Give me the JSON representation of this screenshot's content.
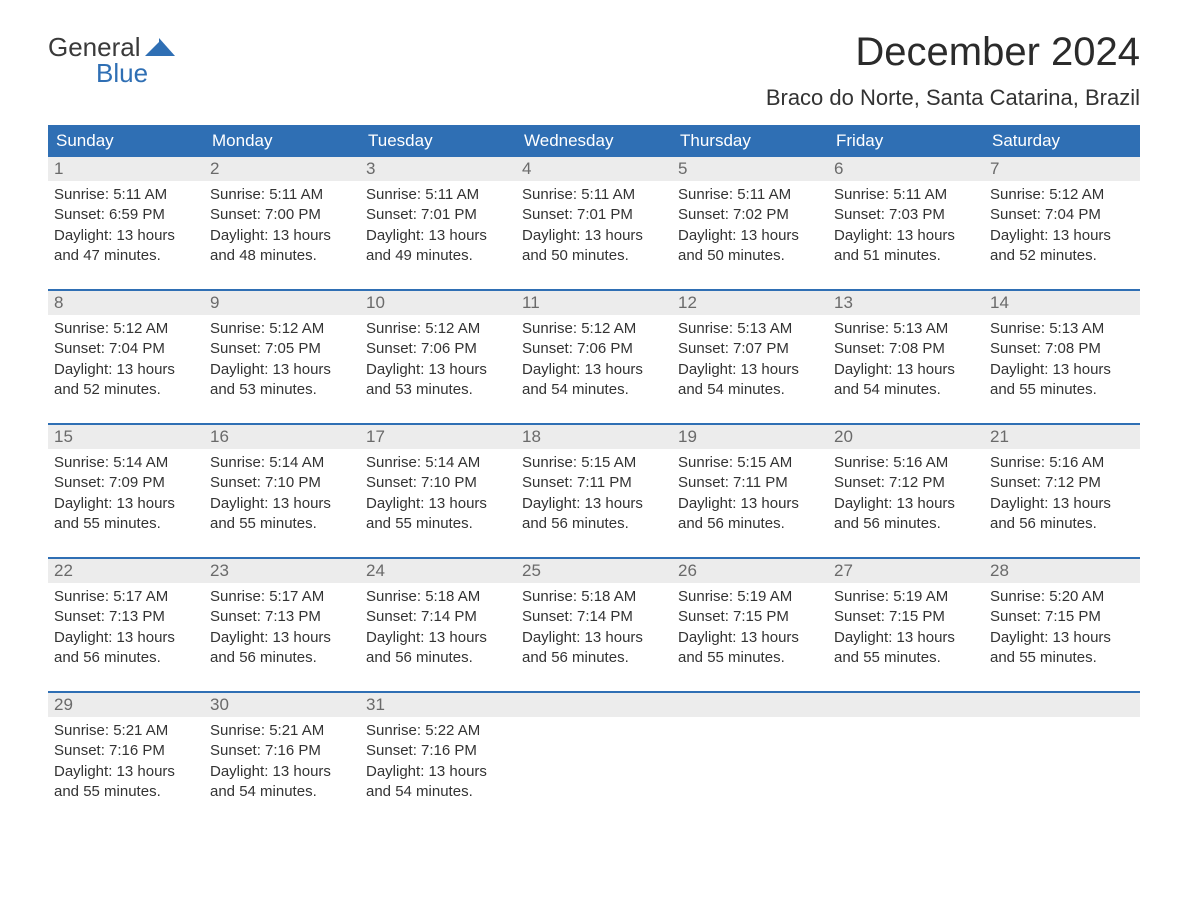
{
  "logo": {
    "line1": "General",
    "line2": "Blue",
    "mark_color": "#2f6fb4"
  },
  "title": "December 2024",
  "location": "Braco do Norte, Santa Catarina, Brazil",
  "colors": {
    "header_bg": "#2f6fb4",
    "header_text": "#ffffff",
    "daynum_bg": "#ececec",
    "daynum_text": "#6a6a6a",
    "body_text": "#333333",
    "week_border": "#2f6fb4"
  },
  "days_of_week": [
    "Sunday",
    "Monday",
    "Tuesday",
    "Wednesday",
    "Thursday",
    "Friday",
    "Saturday"
  ],
  "weeks": [
    [
      {
        "n": "1",
        "sr": "Sunrise: 5:11 AM",
        "ss": "Sunset: 6:59 PM",
        "d1": "Daylight: 13 hours",
        "d2": "and 47 minutes."
      },
      {
        "n": "2",
        "sr": "Sunrise: 5:11 AM",
        "ss": "Sunset: 7:00 PM",
        "d1": "Daylight: 13 hours",
        "d2": "and 48 minutes."
      },
      {
        "n": "3",
        "sr": "Sunrise: 5:11 AM",
        "ss": "Sunset: 7:01 PM",
        "d1": "Daylight: 13 hours",
        "d2": "and 49 minutes."
      },
      {
        "n": "4",
        "sr": "Sunrise: 5:11 AM",
        "ss": "Sunset: 7:01 PM",
        "d1": "Daylight: 13 hours",
        "d2": "and 50 minutes."
      },
      {
        "n": "5",
        "sr": "Sunrise: 5:11 AM",
        "ss": "Sunset: 7:02 PM",
        "d1": "Daylight: 13 hours",
        "d2": "and 50 minutes."
      },
      {
        "n": "6",
        "sr": "Sunrise: 5:11 AM",
        "ss": "Sunset: 7:03 PM",
        "d1": "Daylight: 13 hours",
        "d2": "and 51 minutes."
      },
      {
        "n": "7",
        "sr": "Sunrise: 5:12 AM",
        "ss": "Sunset: 7:04 PM",
        "d1": "Daylight: 13 hours",
        "d2": "and 52 minutes."
      }
    ],
    [
      {
        "n": "8",
        "sr": "Sunrise: 5:12 AM",
        "ss": "Sunset: 7:04 PM",
        "d1": "Daylight: 13 hours",
        "d2": "and 52 minutes."
      },
      {
        "n": "9",
        "sr": "Sunrise: 5:12 AM",
        "ss": "Sunset: 7:05 PM",
        "d1": "Daylight: 13 hours",
        "d2": "and 53 minutes."
      },
      {
        "n": "10",
        "sr": "Sunrise: 5:12 AM",
        "ss": "Sunset: 7:06 PM",
        "d1": "Daylight: 13 hours",
        "d2": "and 53 minutes."
      },
      {
        "n": "11",
        "sr": "Sunrise: 5:12 AM",
        "ss": "Sunset: 7:06 PM",
        "d1": "Daylight: 13 hours",
        "d2": "and 54 minutes."
      },
      {
        "n": "12",
        "sr": "Sunrise: 5:13 AM",
        "ss": "Sunset: 7:07 PM",
        "d1": "Daylight: 13 hours",
        "d2": "and 54 minutes."
      },
      {
        "n": "13",
        "sr": "Sunrise: 5:13 AM",
        "ss": "Sunset: 7:08 PM",
        "d1": "Daylight: 13 hours",
        "d2": "and 54 minutes."
      },
      {
        "n": "14",
        "sr": "Sunrise: 5:13 AM",
        "ss": "Sunset: 7:08 PM",
        "d1": "Daylight: 13 hours",
        "d2": "and 55 minutes."
      }
    ],
    [
      {
        "n": "15",
        "sr": "Sunrise: 5:14 AM",
        "ss": "Sunset: 7:09 PM",
        "d1": "Daylight: 13 hours",
        "d2": "and 55 minutes."
      },
      {
        "n": "16",
        "sr": "Sunrise: 5:14 AM",
        "ss": "Sunset: 7:10 PM",
        "d1": "Daylight: 13 hours",
        "d2": "and 55 minutes."
      },
      {
        "n": "17",
        "sr": "Sunrise: 5:14 AM",
        "ss": "Sunset: 7:10 PM",
        "d1": "Daylight: 13 hours",
        "d2": "and 55 minutes."
      },
      {
        "n": "18",
        "sr": "Sunrise: 5:15 AM",
        "ss": "Sunset: 7:11 PM",
        "d1": "Daylight: 13 hours",
        "d2": "and 56 minutes."
      },
      {
        "n": "19",
        "sr": "Sunrise: 5:15 AM",
        "ss": "Sunset: 7:11 PM",
        "d1": "Daylight: 13 hours",
        "d2": "and 56 minutes."
      },
      {
        "n": "20",
        "sr": "Sunrise: 5:16 AM",
        "ss": "Sunset: 7:12 PM",
        "d1": "Daylight: 13 hours",
        "d2": "and 56 minutes."
      },
      {
        "n": "21",
        "sr": "Sunrise: 5:16 AM",
        "ss": "Sunset: 7:12 PM",
        "d1": "Daylight: 13 hours",
        "d2": "and 56 minutes."
      }
    ],
    [
      {
        "n": "22",
        "sr": "Sunrise: 5:17 AM",
        "ss": "Sunset: 7:13 PM",
        "d1": "Daylight: 13 hours",
        "d2": "and 56 minutes."
      },
      {
        "n": "23",
        "sr": "Sunrise: 5:17 AM",
        "ss": "Sunset: 7:13 PM",
        "d1": "Daylight: 13 hours",
        "d2": "and 56 minutes."
      },
      {
        "n": "24",
        "sr": "Sunrise: 5:18 AM",
        "ss": "Sunset: 7:14 PM",
        "d1": "Daylight: 13 hours",
        "d2": "and 56 minutes."
      },
      {
        "n": "25",
        "sr": "Sunrise: 5:18 AM",
        "ss": "Sunset: 7:14 PM",
        "d1": "Daylight: 13 hours",
        "d2": "and 56 minutes."
      },
      {
        "n": "26",
        "sr": "Sunrise: 5:19 AM",
        "ss": "Sunset: 7:15 PM",
        "d1": "Daylight: 13 hours",
        "d2": "and 55 minutes."
      },
      {
        "n": "27",
        "sr": "Sunrise: 5:19 AM",
        "ss": "Sunset: 7:15 PM",
        "d1": "Daylight: 13 hours",
        "d2": "and 55 minutes."
      },
      {
        "n": "28",
        "sr": "Sunrise: 5:20 AM",
        "ss": "Sunset: 7:15 PM",
        "d1": "Daylight: 13 hours",
        "d2": "and 55 minutes."
      }
    ],
    [
      {
        "n": "29",
        "sr": "Sunrise: 5:21 AM",
        "ss": "Sunset: 7:16 PM",
        "d1": "Daylight: 13 hours",
        "d2": "and 55 minutes."
      },
      {
        "n": "30",
        "sr": "Sunrise: 5:21 AM",
        "ss": "Sunset: 7:16 PM",
        "d1": "Daylight: 13 hours",
        "d2": "and 54 minutes."
      },
      {
        "n": "31",
        "sr": "Sunrise: 5:22 AM",
        "ss": "Sunset: 7:16 PM",
        "d1": "Daylight: 13 hours",
        "d2": "and 54 minutes."
      },
      null,
      null,
      null,
      null
    ]
  ]
}
